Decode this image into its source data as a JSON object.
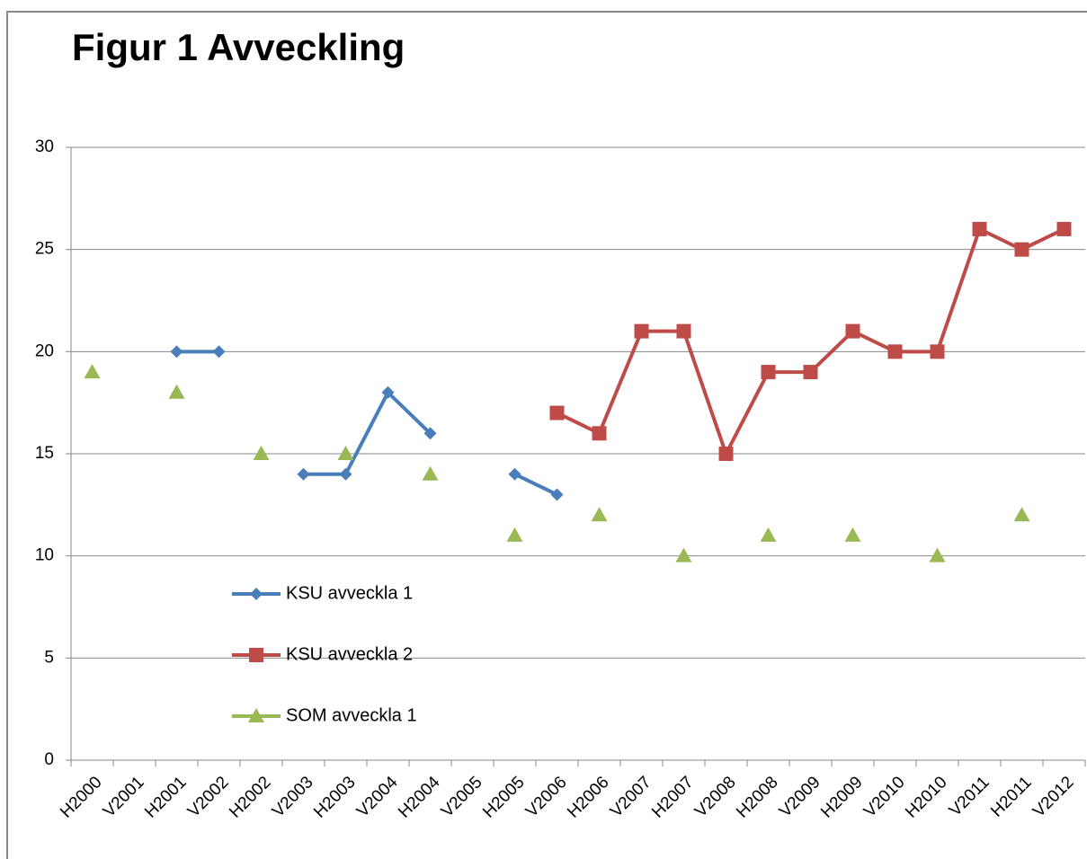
{
  "chart_data": {
    "type": "line",
    "title": "Figur 1 Avveckling",
    "categories": [
      "H2000",
      "V2001",
      "H2001",
      "V2002",
      "H2002",
      "V2003",
      "H2003",
      "V2004",
      "H2004",
      "V2005",
      "H2005",
      "V2006",
      "H2006",
      "V2007",
      "H2007",
      "V2008",
      "H2008",
      "V2009",
      "H2009",
      "V2010",
      "H2010",
      "V2011",
      "H2011",
      "V2012"
    ],
    "series": [
      {
        "name": "KSU avveckla 1",
        "color": "#4a7ebb",
        "marker": "diamond",
        "line": true,
        "values": [
          null,
          null,
          20,
          20,
          null,
          14,
          14,
          18,
          16,
          null,
          14,
          13,
          null,
          null,
          null,
          null,
          null,
          null,
          null,
          null,
          null,
          null,
          null,
          null
        ]
      },
      {
        "name": "KSU avveckla 2",
        "color": "#be4b48",
        "marker": "square",
        "line": true,
        "values": [
          null,
          null,
          null,
          null,
          null,
          null,
          null,
          null,
          null,
          null,
          null,
          17,
          16,
          21,
          21,
          15,
          19,
          19,
          21,
          20,
          20,
          26,
          25,
          26
        ]
      },
      {
        "name": "SOM avveckla 1",
        "color": "#98b954",
        "marker": "triangle",
        "line": false,
        "values": [
          19,
          null,
          18,
          null,
          15,
          null,
          15,
          null,
          14,
          null,
          11,
          null,
          12,
          null,
          10,
          null,
          11,
          null,
          11,
          null,
          10,
          null,
          12,
          null
        ]
      }
    ],
    "ylim": [
      0,
      30
    ],
    "yticks": [
      0,
      5,
      10,
      15,
      20,
      25,
      30
    ],
    "grid": true,
    "legend": "lower left"
  }
}
